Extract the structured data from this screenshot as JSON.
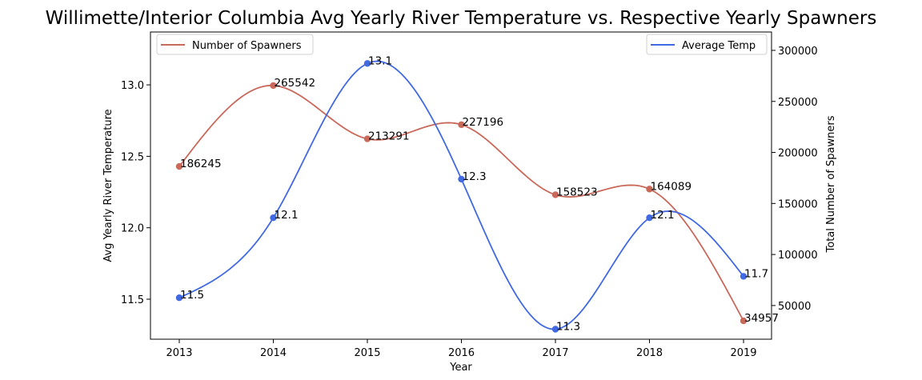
{
  "chart_data": {
    "type": "line",
    "title": "Willimette/Interior Columbia Avg Yearly River Temperature vs. Respective Yearly Spawners",
    "xlabel": "Year",
    "ylabel_left": "Avg Yearly River Temperature",
    "ylabel_right": "Total Number of Spawners",
    "x": [
      "2013",
      "2014",
      "2015",
      "2016",
      "2017",
      "2018",
      "2019"
    ],
    "ylim_left": [
      11.22,
      13.37
    ],
    "ylim_right": [
      17000,
      318000
    ],
    "y_ticks_left": [
      "11.5",
      "12.0",
      "12.5",
      "13.0"
    ],
    "y_ticks_right": [
      "50000",
      "100000",
      "150000",
      "200000",
      "250000",
      "300000"
    ],
    "grid": false,
    "series": [
      {
        "name": "Average Temp",
        "axis": "left",
        "color": "#4169E1",
        "values": [
          11.51,
          12.07,
          13.15,
          12.34,
          11.29,
          12.07,
          11.66
        ],
        "labels": [
          "11.5",
          "12.1",
          "13.1",
          "12.3",
          "11.3",
          "12.1",
          "11.7"
        ],
        "legend_position": "top-right"
      },
      {
        "name": "Number of Spawners",
        "axis": "right",
        "color": "#C8695A",
        "values": [
          186245,
          265542,
          213291,
          227196,
          158523,
          164089,
          34957
        ],
        "labels": [
          "186245",
          "265542",
          "213291",
          "227196",
          "158523",
          "164089",
          "34957"
        ],
        "legend_position": "top-left"
      }
    ]
  }
}
